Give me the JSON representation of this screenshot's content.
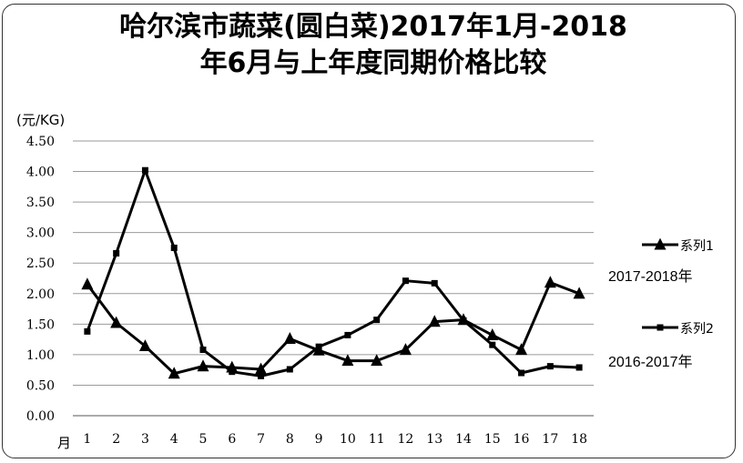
{
  "chart_data": {
    "type": "line",
    "title_lines": [
      "哈尔滨市蔬菜(圆白菜)2017年1月-2018",
      "年6月与上年度同期价格比较"
    ],
    "ylabel": "(元/KG)",
    "xlabel": "月",
    "ylim": [
      0,
      4.5
    ],
    "yticks": [
      "0.00",
      "0.50",
      "1.00",
      "1.50",
      "2.00",
      "2.50",
      "3.00",
      "3.50",
      "4.00",
      "4.50"
    ],
    "categories": [
      "1",
      "2",
      "3",
      "4",
      "5",
      "6",
      "7",
      "8",
      "9",
      "10",
      "11",
      "12",
      "13",
      "14",
      "15",
      "16",
      "17",
      "18"
    ],
    "grid": true,
    "legend_position": "right",
    "series": [
      {
        "name": "系列1",
        "period": "2017-2018年",
        "marker": "triangle",
        "color": "#000000",
        "values": [
          2.15,
          1.52,
          1.14,
          0.69,
          0.81,
          0.79,
          0.76,
          1.26,
          1.07,
          0.9,
          0.9,
          1.08,
          1.54,
          1.57,
          1.32,
          1.08,
          2.18,
          2.0
        ]
      },
      {
        "name": "系列2",
        "period": "2016-2017年",
        "marker": "square",
        "color": "#000000",
        "values": [
          1.38,
          2.66,
          4.02,
          2.75,
          1.08,
          0.72,
          0.65,
          0.76,
          1.13,
          1.32,
          1.57,
          2.21,
          2.17,
          1.56,
          1.16,
          0.7,
          0.81,
          0.79
        ]
      }
    ]
  }
}
